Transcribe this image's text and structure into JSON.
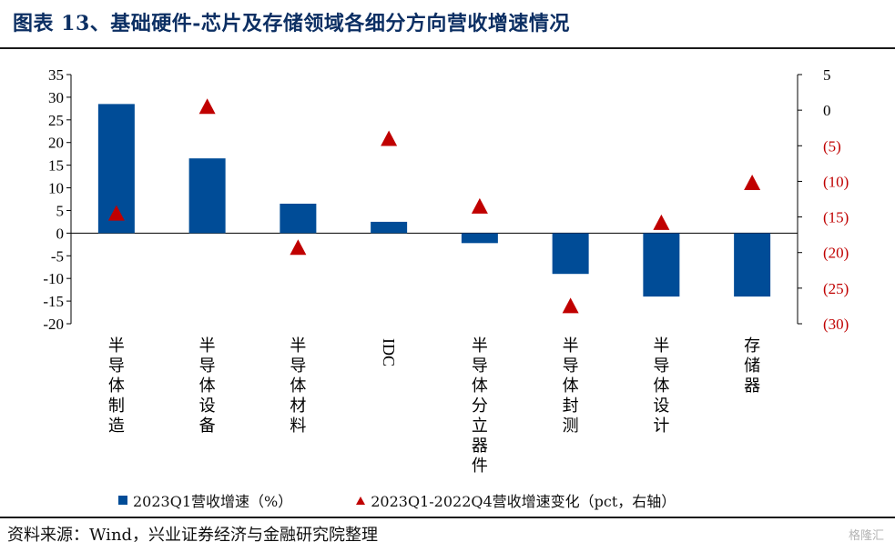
{
  "header": {
    "title": "图表 13、基础硬件-芯片及存储领域各细分方向营收增速情况"
  },
  "footer": {
    "source": "资料来源：Wind，兴业证券经济与金融研究院整理",
    "watermark": "格隆汇"
  },
  "colors": {
    "bar": "#004c97",
    "marker": "#c00000",
    "right_axis_text": "#c00000"
  },
  "chart_data": {
    "type": "bar",
    "categories": [
      "半导体制造",
      "半导体设备",
      "半导体材料",
      "IDC",
      "半导体分立器件",
      "半导体封测",
      "半导体设计",
      "存储器"
    ],
    "series": [
      {
        "name": "2023Q1营收增速（%）",
        "axis": "left",
        "type": "bar",
        "values": [
          28.5,
          16.5,
          6.5,
          2.5,
          -2.2,
          -9.0,
          -14.0,
          -14.0
        ]
      },
      {
        "name": "2023Q1-2022Q4营收增速变化（pct，右轴）",
        "axis": "right",
        "type": "marker-triangle",
        "values": [
          -14.5,
          0.5,
          -19.3,
          -4.0,
          -13.5,
          -27.5,
          -15.8,
          -10.2
        ]
      }
    ],
    "left_axis": {
      "ylim": [
        -20,
        35
      ],
      "ticks": [
        35,
        30,
        25,
        20,
        15,
        10,
        5,
        0,
        -5,
        -10,
        -15,
        -20
      ],
      "tick_labels": [
        "35",
        "30",
        "25",
        "20",
        "15",
        "10",
        "5",
        "0",
        "-5",
        "-10",
        "-15",
        "-20"
      ]
    },
    "right_axis": {
      "ylim": [
        -30,
        5
      ],
      "ticks": [
        5,
        0,
        -5,
        -10,
        -15,
        -20,
        -25,
        -30
      ],
      "tick_labels": [
        "5",
        "0",
        "(5)",
        "(10)",
        "(15)",
        "(20)",
        "(25)",
        "(30)"
      ]
    },
    "legend": {
      "placement": "bottom",
      "entries": [
        "2023Q1营收增速（%）",
        "2023Q1-2022Q4营收增速变化（pct，右轴）"
      ]
    },
    "grid": false
  }
}
